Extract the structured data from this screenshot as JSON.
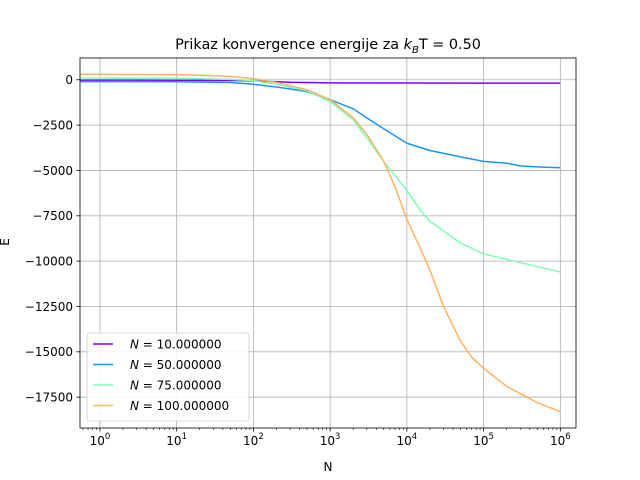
{
  "chart_data": {
    "type": "line",
    "title_prefix": "Prikaz konvergence energije za ",
    "title_math": "k",
    "title_sub": "B",
    "title_suffix": "T = 0.50",
    "xlabel": "N",
    "ylabel": "E",
    "xscale": "log",
    "xlim": [
      0.55,
      1600000
    ],
    "ylim": [
      -19200,
      1200
    ],
    "grid": true,
    "legend_position": "lower-left",
    "x_ticks": [
      {
        "value": 1,
        "base": "10",
        "exp": "0"
      },
      {
        "value": 10,
        "base": "10",
        "exp": "1"
      },
      {
        "value": 100,
        "base": "10",
        "exp": "2"
      },
      {
        "value": 1000,
        "base": "10",
        "exp": "3"
      },
      {
        "value": 10000,
        "base": "10",
        "exp": "4"
      },
      {
        "value": 100000,
        "base": "10",
        "exp": "5"
      },
      {
        "value": 1000000,
        "base": "10",
        "exp": "6"
      }
    ],
    "y_ticks": [
      {
        "value": 0,
        "label": "0"
      },
      {
        "value": -2500,
        "label": "−2500"
      },
      {
        "value": -5000,
        "label": "−5000"
      },
      {
        "value": -7500,
        "label": "−7500"
      },
      {
        "value": -10000,
        "label": "−10000"
      },
      {
        "value": -12500,
        "label": "−12500"
      },
      {
        "value": -15000,
        "label": "−15000"
      },
      {
        "value": -17500,
        "label": "−17500"
      }
    ],
    "series": [
      {
        "name": "N = 10.000000",
        "legend_math": "N",
        "legend_value": " = 10.000000",
        "color": "#8000ff",
        "points": [
          [
            0.55,
            -20
          ],
          [
            1,
            -20
          ],
          [
            10,
            -25
          ],
          [
            50,
            -40
          ],
          [
            100,
            -60
          ],
          [
            300,
            -140
          ],
          [
            1000,
            -170
          ],
          [
            10000,
            -180
          ],
          [
            100000,
            -185
          ],
          [
            1000000,
            -185
          ]
        ]
      },
      {
        "name": "N = 50.000000",
        "legend_math": "N",
        "legend_value": " = 50.000000",
        "color": "#1996f3",
        "points": [
          [
            0.55,
            -100
          ],
          [
            1,
            -100
          ],
          [
            10,
            -110
          ],
          [
            50,
            -150
          ],
          [
            100,
            -250
          ],
          [
            200,
            -400
          ],
          [
            500,
            -650
          ],
          [
            1000,
            -1100
          ],
          [
            2000,
            -1600
          ],
          [
            3000,
            -2100
          ],
          [
            5000,
            -2700
          ],
          [
            10000,
            -3500
          ],
          [
            20000,
            -3900
          ],
          [
            50000,
            -4250
          ],
          [
            100000,
            -4500
          ],
          [
            200000,
            -4600
          ],
          [
            300000,
            -4750
          ],
          [
            500000,
            -4800
          ],
          [
            1000000,
            -4850
          ]
        ]
      },
      {
        "name": "N = 75.000000",
        "legend_math": "N",
        "legend_value": " = 75.000000",
        "color": "#80ffb4",
        "points": [
          [
            0.55,
            100
          ],
          [
            1,
            100
          ],
          [
            10,
            80
          ],
          [
            50,
            20
          ],
          [
            100,
            -50
          ],
          [
            200,
            -250
          ],
          [
            500,
            -600
          ],
          [
            1000,
            -1200
          ],
          [
            2000,
            -2200
          ],
          [
            3000,
            -3200
          ],
          [
            5000,
            -4500
          ],
          [
            10000,
            -6100
          ],
          [
            15000,
            -7200
          ],
          [
            20000,
            -7800
          ],
          [
            50000,
            -9000
          ],
          [
            100000,
            -9600
          ],
          [
            200000,
            -9900
          ],
          [
            500000,
            -10300
          ],
          [
            1000000,
            -10600
          ]
        ]
      },
      {
        "name": "N = 100.000000",
        "legend_math": "N",
        "legend_value": " = 100.000000",
        "color": "#ffb360",
        "points": [
          [
            0.55,
            300
          ],
          [
            1,
            300
          ],
          [
            10,
            280
          ],
          [
            30,
            230
          ],
          [
            50,
            180
          ],
          [
            100,
            60
          ],
          [
            200,
            -150
          ],
          [
            500,
            -550
          ],
          [
            1000,
            -1100
          ],
          [
            2000,
            -2100
          ],
          [
            3000,
            -3000
          ],
          [
            5000,
            -4500
          ],
          [
            7000,
            -5900
          ],
          [
            10000,
            -7700
          ],
          [
            15000,
            -9300
          ],
          [
            20000,
            -10500
          ],
          [
            30000,
            -12500
          ],
          [
            50000,
            -14400
          ],
          [
            70000,
            -15300
          ],
          [
            100000,
            -15900
          ],
          [
            150000,
            -16500
          ],
          [
            200000,
            -16900
          ],
          [
            300000,
            -17300
          ],
          [
            500000,
            -17800
          ],
          [
            1000000,
            -18300
          ]
        ]
      }
    ]
  }
}
